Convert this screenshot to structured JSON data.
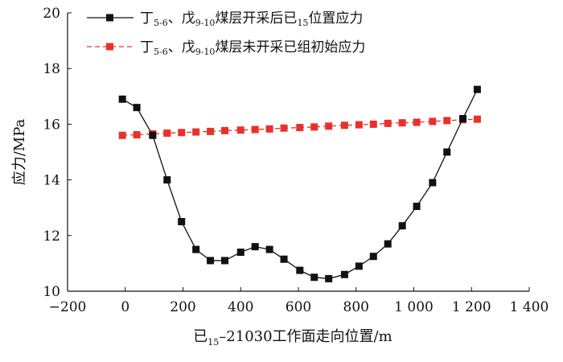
{
  "chart_data": {
    "type": "line",
    "xlabel": {
      "main": "已",
      "sub": "15",
      "rest": "–21030工作面走向位置/m"
    },
    "ylabel": "应力/MPa",
    "xlim": [
      -200,
      1400
    ],
    "ylim": [
      10,
      20
    ],
    "x_ticks": [
      {
        "value": -200,
        "label": "−200"
      },
      {
        "value": 0,
        "label": "0"
      },
      {
        "value": 200,
        "label": "200"
      },
      {
        "value": 400,
        "label": "400"
      },
      {
        "value": 600,
        "label": "600"
      },
      {
        "value": 800,
        "label": "800"
      },
      {
        "value": 1000,
        "label": "1 000"
      },
      {
        "value": 1200,
        "label": "1 200"
      },
      {
        "value": 1400,
        "label": "1 400"
      }
    ],
    "y_ticks": [
      {
        "value": 10,
        "label": "10"
      },
      {
        "value": 12,
        "label": "12"
      },
      {
        "value": 14,
        "label": "14"
      },
      {
        "value": 16,
        "label": "16"
      },
      {
        "value": 18,
        "label": "18"
      },
      {
        "value": 20,
        "label": "20"
      }
    ],
    "legend_position": "top-left",
    "series": [
      {
        "legend": [
          {
            "t": "丁"
          },
          {
            "t": "5-6",
            "sub": true
          },
          {
            "t": "、戊"
          },
          {
            "t": "9-10",
            "sub": true
          },
          {
            "t": "煤层开采后已"
          },
          {
            "t": "15",
            "sub": true
          },
          {
            "t": "位置应力"
          }
        ],
        "color": "#111111",
        "line_style": "solid",
        "marker": "square",
        "x": [
          -10,
          40,
          95,
          145,
          195,
          245,
          295,
          345,
          400,
          450,
          500,
          550,
          605,
          655,
          705,
          760,
          810,
          860,
          910,
          960,
          1010,
          1065,
          1115,
          1170,
          1220
        ],
        "y": [
          16.9,
          16.6,
          15.6,
          14.0,
          12.5,
          11.5,
          11.1,
          11.1,
          11.4,
          11.6,
          11.5,
          11.15,
          10.75,
          10.5,
          10.45,
          10.6,
          10.9,
          11.25,
          11.7,
          12.35,
          13.05,
          13.9,
          15.0,
          16.2,
          17.25
        ]
      },
      {
        "legend": [
          {
            "t": "丁"
          },
          {
            "t": "5-6",
            "sub": true
          },
          {
            "t": "、戊"
          },
          {
            "t": "9-10",
            "sub": true
          },
          {
            "t": "煤层未开采已组初始应力"
          }
        ],
        "color": "#e8312a",
        "line_style": "dashed",
        "marker": "square",
        "x": [
          -10,
          40,
          95,
          145,
          195,
          245,
          295,
          345,
          400,
          450,
          500,
          550,
          605,
          655,
          705,
          760,
          810,
          860,
          910,
          960,
          1010,
          1065,
          1115,
          1170,
          1220
        ],
        "y": [
          15.6,
          15.62,
          15.65,
          15.68,
          15.7,
          15.72,
          15.74,
          15.77,
          15.79,
          15.81,
          15.83,
          15.86,
          15.88,
          15.9,
          15.93,
          15.96,
          15.98,
          16.0,
          16.03,
          16.05,
          16.07,
          16.1,
          16.13,
          16.16,
          16.18
        ]
      }
    ]
  }
}
